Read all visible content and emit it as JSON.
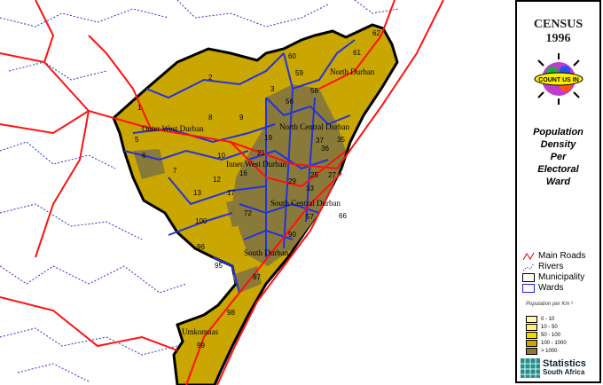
{
  "title": {
    "line1": "CENSUS",
    "line2": "1996"
  },
  "logo_text": "COUNT US IN",
  "subtitle": [
    "Population",
    "Density",
    "Per",
    "Electoral",
    "Ward"
  ],
  "legend": {
    "items": [
      {
        "label": "Main Roads",
        "icon": "road-line-icon",
        "color": "#ff0000"
      },
      {
        "label": "Rivers",
        "icon": "river-line-icon",
        "color": "#0000cc"
      },
      {
        "label": "Municipality",
        "icon": "municipality-box-icon",
        "color": "#000000"
      },
      {
        "label": "Wards",
        "icon": "ward-box-icon",
        "color": "#2222dd"
      }
    ],
    "density_title": "Population per Km ²",
    "density_classes": [
      {
        "label": "0 - 10",
        "color": "#fff4b0"
      },
      {
        "label": "10 - 50",
        "color": "#ffee80"
      },
      {
        "label": "50 - 100",
        "color": "#f2d800"
      },
      {
        "label": "100 - 1000",
        "color": "#c9a600"
      },
      {
        "label": "> 1000",
        "color": "#8a7a3a"
      }
    ]
  },
  "publisher": {
    "line1": "Statistics",
    "line2": "South Africa"
  },
  "regions": [
    "Outer West Durban",
    "North Central Durban",
    "Inner West Durban",
    "South Central Durban",
    "South Durban",
    "North Durban",
    "Umkomaas"
  ],
  "wards": [
    "1",
    "2",
    "3",
    "5",
    "6",
    "7",
    "8",
    "9",
    "10",
    "12",
    "13",
    "16",
    "17",
    "19",
    "21",
    "25",
    "27",
    "29",
    "33",
    "35",
    "36",
    "37",
    "56",
    "57",
    "58",
    "59",
    "60",
    "61",
    "62",
    "66",
    "72",
    "90",
    "95",
    "96",
    "97",
    "98",
    "99",
    "100"
  ]
}
